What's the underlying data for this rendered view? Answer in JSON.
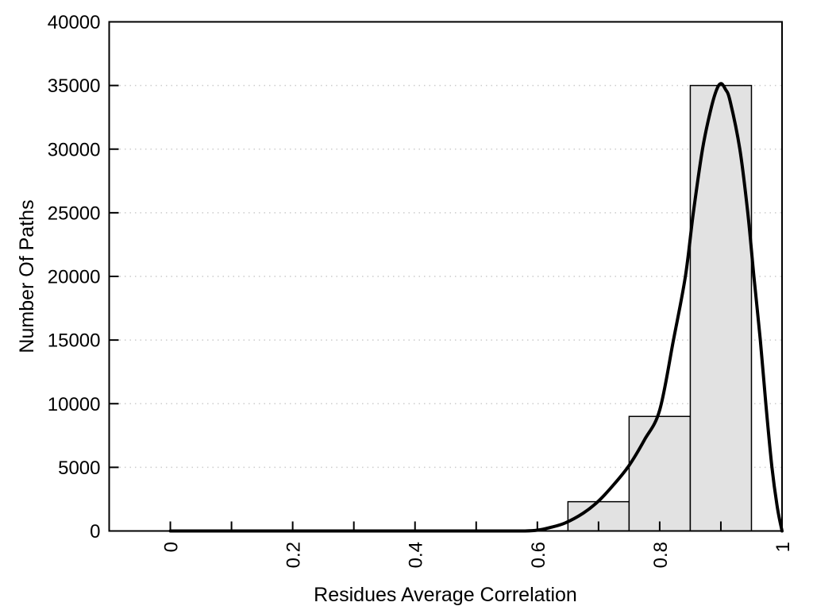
{
  "chart_data": {
    "type": "bar",
    "subtype": "histogram-with-fit-curve",
    "title": "",
    "xlabel": "Residues Average Correlation",
    "ylabel": "Number Of Paths",
    "xlim": [
      -0.1,
      1.0
    ],
    "ylim": [
      0,
      40000
    ],
    "grid": {
      "horizontal": true,
      "style": "dotted",
      "every": 5000
    },
    "x_ticks": {
      "minor_step": 0.1,
      "labeled": [
        {
          "v": 0,
          "label": "0"
        },
        {
          "v": 0.2,
          "label": "0.2"
        },
        {
          "v": 0.4,
          "label": "0.4"
        },
        {
          "v": 0.6,
          "label": "0.6"
        },
        {
          "v": 0.8,
          "label": "0.8"
        },
        {
          "v": 1,
          "label": "1"
        }
      ]
    },
    "y_ticks": [
      {
        "v": 0,
        "label": "0"
      },
      {
        "v": 5000,
        "label": "5000"
      },
      {
        "v": 10000,
        "label": "10000"
      },
      {
        "v": 15000,
        "label": "15000"
      },
      {
        "v": 20000,
        "label": "20000"
      },
      {
        "v": 25000,
        "label": "25000"
      },
      {
        "v": 30000,
        "label": "30000"
      },
      {
        "v": 35000,
        "label": "35000"
      },
      {
        "v": 40000,
        "label": "40000"
      }
    ],
    "bars": [
      {
        "x0": 0.65,
        "x1": 0.75,
        "count": 2300
      },
      {
        "x0": 0.75,
        "x1": 0.85,
        "count": 9000
      },
      {
        "x0": 0.85,
        "x1": 0.95,
        "count": 35000
      }
    ],
    "curve": {
      "name": "fit-curve",
      "peak": {
        "x": 0.9,
        "y": 35150
      },
      "points": [
        [
          0.0,
          0
        ],
        [
          0.1,
          0
        ],
        [
          0.2,
          0
        ],
        [
          0.3,
          0
        ],
        [
          0.4,
          0
        ],
        [
          0.5,
          0
        ],
        [
          0.55,
          0
        ],
        [
          0.58,
          0
        ],
        [
          0.6,
          60
        ],
        [
          0.62,
          260
        ],
        [
          0.645,
          620
        ],
        [
          0.675,
          1400
        ],
        [
          0.7,
          2350
        ],
        [
          0.725,
          3650
        ],
        [
          0.75,
          5150
        ],
        [
          0.775,
          7150
        ],
        [
          0.8,
          9500
        ],
        [
          0.8225,
          15000
        ],
        [
          0.842,
          20000
        ],
        [
          0.855,
          25000
        ],
        [
          0.87,
          30000
        ],
        [
          0.883,
          33000
        ],
        [
          0.8925,
          34600
        ],
        [
          0.9,
          35150
        ],
        [
          0.9075,
          34700
        ],
        [
          0.915,
          33800
        ],
        [
          0.931,
          30000
        ],
        [
          0.944,
          25000
        ],
        [
          0.954,
          20000
        ],
        [
          0.9645,
          15000
        ],
        [
          0.9735,
          10000
        ],
        [
          0.9835,
          5000
        ],
        [
          0.9925,
          1800
        ],
        [
          1.0,
          0
        ]
      ]
    },
    "colors": {
      "background": "#ffffff",
      "text": "#000000",
      "axis": "#000000",
      "bar_fill": "#e2e2e2",
      "bar_border": "#000000",
      "curve": "#000000",
      "grid_line": "#cccccc"
    }
  }
}
